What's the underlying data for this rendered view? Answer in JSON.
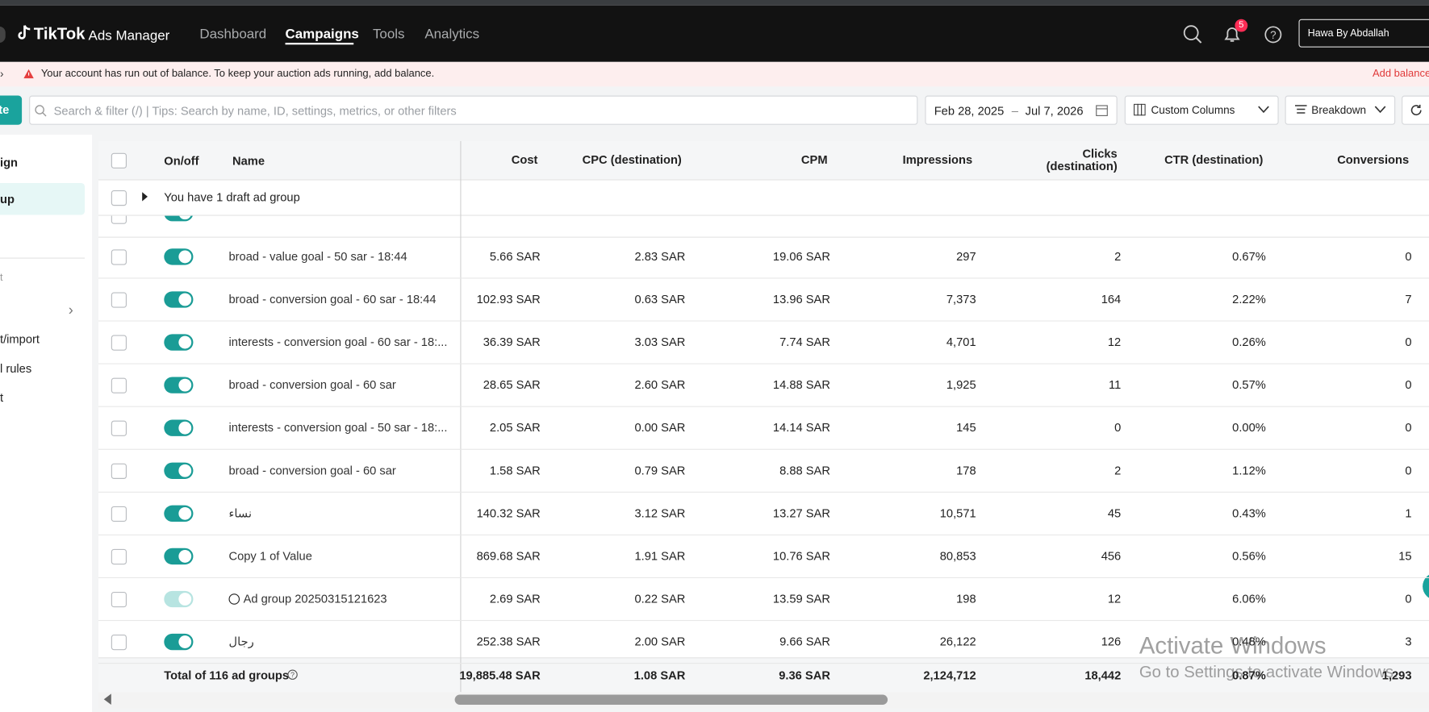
{
  "header": {
    "logo": "TikTok",
    "product": "Ads Manager",
    "nav": [
      "Dashboard",
      "Campaigns",
      "Tools",
      "Analytics"
    ],
    "active_nav": 1,
    "notifications": "5",
    "account": "Hawa By Abdallah"
  },
  "banner": {
    "message": "Your account has run out of balance. To keep your auction ads running, add balance.",
    "action": "Add balance"
  },
  "toolbar": {
    "create": "te",
    "search_placeholder": "Search & filter (/) | Tips: Search by name, ID, settings, metrics, or other filters",
    "date_start": "Feb 28, 2025",
    "date_separator": "–",
    "date_end": "Jul 7, 2026",
    "custom_columns": "Custom Columns",
    "breakdown": "Breakdown"
  },
  "sidebar": {
    "items": [
      "ign",
      "up",
      "t",
      "t/import",
      "l rules",
      "t"
    ],
    "selected": 1
  },
  "table": {
    "columns": [
      "On/off",
      "Name",
      "Cost",
      "CPC (destination)",
      "CPM",
      "Impressions",
      "Clicks (destination)",
      "CTR (destination)",
      "Conversions"
    ],
    "draft_row": "You have 1 draft ad group",
    "rows": [
      {
        "status": "on",
        "name": "broad - value goal - 50 sar - 18:44",
        "cells": [
          "5.66 SAR",
          "2.83 SAR",
          "19.06 SAR",
          "297",
          "2",
          "0.67%",
          "0"
        ]
      },
      {
        "status": "on",
        "name": "broad - conversion goal - 60 sar - 18:44",
        "cells": [
          "102.93 SAR",
          "0.63 SAR",
          "13.96 SAR",
          "7,373",
          "164",
          "2.22%",
          "7"
        ]
      },
      {
        "status": "on",
        "name": "interests - conversion goal - 60 sar - 18:...",
        "cells": [
          "36.39 SAR",
          "3.03 SAR",
          "7.74 SAR",
          "4,701",
          "12",
          "0.26%",
          "0"
        ]
      },
      {
        "status": "on",
        "name": "broad - conversion goal - 60 sar",
        "cells": [
          "28.65 SAR",
          "2.60 SAR",
          "14.88 SAR",
          "1,925",
          "11",
          "0.57%",
          "0"
        ]
      },
      {
        "status": "on",
        "name": "interests - conversion goal - 50 sar - 18:...",
        "cells": [
          "2.05 SAR",
          "0.00 SAR",
          "14.14 SAR",
          "145",
          "0",
          "0.00%",
          "0"
        ]
      },
      {
        "status": "on",
        "name": "broad - conversion goal - 60 sar",
        "cells": [
          "1.58 SAR",
          "0.79 SAR",
          "8.88 SAR",
          "178",
          "2",
          "1.12%",
          "0"
        ]
      },
      {
        "status": "on",
        "name": "نساء",
        "cells": [
          "140.32 SAR",
          "3.12 SAR",
          "13.27 SAR",
          "10,571",
          "45",
          "0.43%",
          "1"
        ]
      },
      {
        "status": "on",
        "name": "Copy 1 of Value",
        "cells": [
          "869.68 SAR",
          "1.91 SAR",
          "10.76 SAR",
          "80,853",
          "456",
          "0.56%",
          "15"
        ]
      },
      {
        "status": "disabled",
        "icon": true,
        "name": "Ad group 20250315121623",
        "cells": [
          "2.69 SAR",
          "0.22 SAR",
          "13.59 SAR",
          "198",
          "12",
          "6.06%",
          "0"
        ]
      },
      {
        "status": "on",
        "name": "رجال",
        "cells": [
          "252.38 SAR",
          "2.00 SAR",
          "9.66 SAR",
          "26,122",
          "126",
          "0.48%",
          "3"
        ]
      }
    ],
    "total": {
      "label": "Total of 116 ad groups",
      "cells": [
        "19,885.48 SAR",
        "1.08 SAR",
        "9.36 SAR",
        "2,124,712",
        "18,442",
        "0.87%",
        "1,293"
      ]
    }
  },
  "watermark": {
    "title": "Activate Windows",
    "subtitle": "Go to Settings to activate Windows."
  }
}
